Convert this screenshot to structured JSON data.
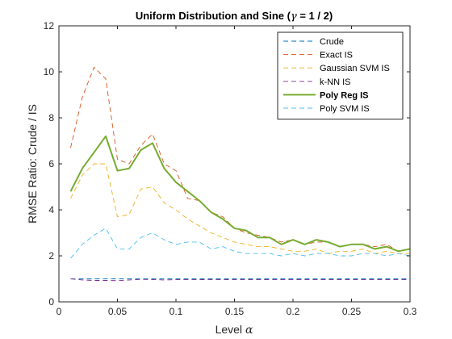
{
  "chart_data": {
    "type": "line",
    "title_prefix": "Uniform Distribution and Sine (",
    "title_gamma": "γ",
    "title_suffix": " = 1 / 2)",
    "xlabel_prefix": "Level ",
    "xlabel_symbol": "α",
    "ylabel": "RMSE Ratio: Crude / IS",
    "xlim": [
      0,
      0.3
    ],
    "ylim": [
      0,
      12
    ],
    "x_ticks": [
      0,
      0.05,
      0.1,
      0.15,
      0.2,
      0.25,
      0.3
    ],
    "x_tick_labels": [
      "0",
      "0.05",
      "0.1",
      "0.15",
      "0.2",
      "0.25",
      "0.3"
    ],
    "y_ticks": [
      0,
      2,
      4,
      6,
      8,
      10,
      12
    ],
    "y_tick_labels": [
      "0",
      "2",
      "4",
      "6",
      "8",
      "10",
      "12"
    ],
    "grid": false,
    "legend_position": "top-right",
    "x": [
      0.01,
      0.02,
      0.03,
      0.04,
      0.05,
      0.06,
      0.07,
      0.08,
      0.09,
      0.1,
      0.11,
      0.12,
      0.13,
      0.14,
      0.15,
      0.16,
      0.17,
      0.18,
      0.19,
      0.2,
      0.21,
      0.22,
      0.23,
      0.24,
      0.25,
      0.26,
      0.27,
      0.28,
      0.29,
      0.3
    ],
    "series": [
      {
        "name": "Crude",
        "color": "#0072BD",
        "dashed": true,
        "bold": false,
        "values": [
          1.0,
          1.0,
          1.0,
          1.0,
          1.0,
          1.0,
          1.0,
          1.0,
          1.0,
          1.0,
          1.0,
          1.0,
          1.0,
          1.0,
          1.0,
          1.0,
          1.0,
          1.0,
          1.0,
          1.0,
          1.0,
          1.0,
          1.0,
          1.0,
          1.0,
          1.0,
          1.0,
          1.0,
          1.0,
          1.0
        ]
      },
      {
        "name": "Exact IS",
        "color": "#D95319",
        "dashed": true,
        "bold": false,
        "values": [
          6.7,
          8.9,
          10.2,
          9.7,
          6.2,
          6.0,
          6.8,
          7.3,
          6.0,
          5.7,
          4.5,
          4.4,
          3.9,
          3.7,
          3.2,
          3.0,
          2.9,
          2.8,
          2.6,
          2.7,
          2.5,
          2.6,
          2.6,
          2.4,
          2.5,
          2.5,
          2.4,
          2.5,
          2.2,
          2.3
        ]
      },
      {
        "name": "Gaussian SVM IS",
        "color": "#EDB120",
        "dashed": true,
        "bold": false,
        "values": [
          4.5,
          5.5,
          6.0,
          6.0,
          3.7,
          3.8,
          4.9,
          5.0,
          4.3,
          4.0,
          3.6,
          3.3,
          3.0,
          2.8,
          2.6,
          2.5,
          2.4,
          2.4,
          2.3,
          2.2,
          2.2,
          2.3,
          2.1,
          2.2,
          2.2,
          2.3,
          2.1,
          2.2,
          2.1,
          2.1
        ]
      },
      {
        "name": "k-NN IS",
        "color": "#7E2F8E",
        "dashed": true,
        "bold": false,
        "values": [
          1.0,
          0.95,
          0.93,
          0.93,
          0.92,
          0.95,
          0.98,
          0.97,
          0.95,
          0.96,
          0.97,
          0.97,
          0.96,
          0.96,
          0.97,
          0.97,
          0.96,
          0.97,
          0.97,
          0.97,
          0.97,
          0.97,
          0.97,
          0.97,
          0.97,
          0.97,
          0.97,
          0.97,
          0.97,
          0.97
        ]
      },
      {
        "name": "Poly Reg IS",
        "color": "#77AC30",
        "dashed": false,
        "bold": true,
        "values": [
          4.8,
          5.8,
          6.5,
          7.2,
          5.7,
          5.8,
          6.6,
          6.9,
          5.8,
          5.2,
          4.8,
          4.4,
          3.9,
          3.6,
          3.2,
          3.1,
          2.8,
          2.8,
          2.5,
          2.7,
          2.5,
          2.7,
          2.6,
          2.4,
          2.5,
          2.5,
          2.3,
          2.4,
          2.2,
          2.3
        ]
      },
      {
        "name": "Poly SVM IS",
        "color": "#4DBEEE",
        "dashed": true,
        "bold": false,
        "values": [
          1.9,
          2.5,
          2.9,
          3.2,
          2.3,
          2.3,
          2.8,
          3.0,
          2.7,
          2.5,
          2.6,
          2.6,
          2.3,
          2.4,
          2.2,
          2.1,
          2.1,
          2.1,
          2.0,
          2.1,
          2.0,
          2.1,
          2.1,
          2.0,
          2.0,
          2.1,
          2.1,
          2.0,
          2.1,
          2.0
        ]
      }
    ]
  }
}
